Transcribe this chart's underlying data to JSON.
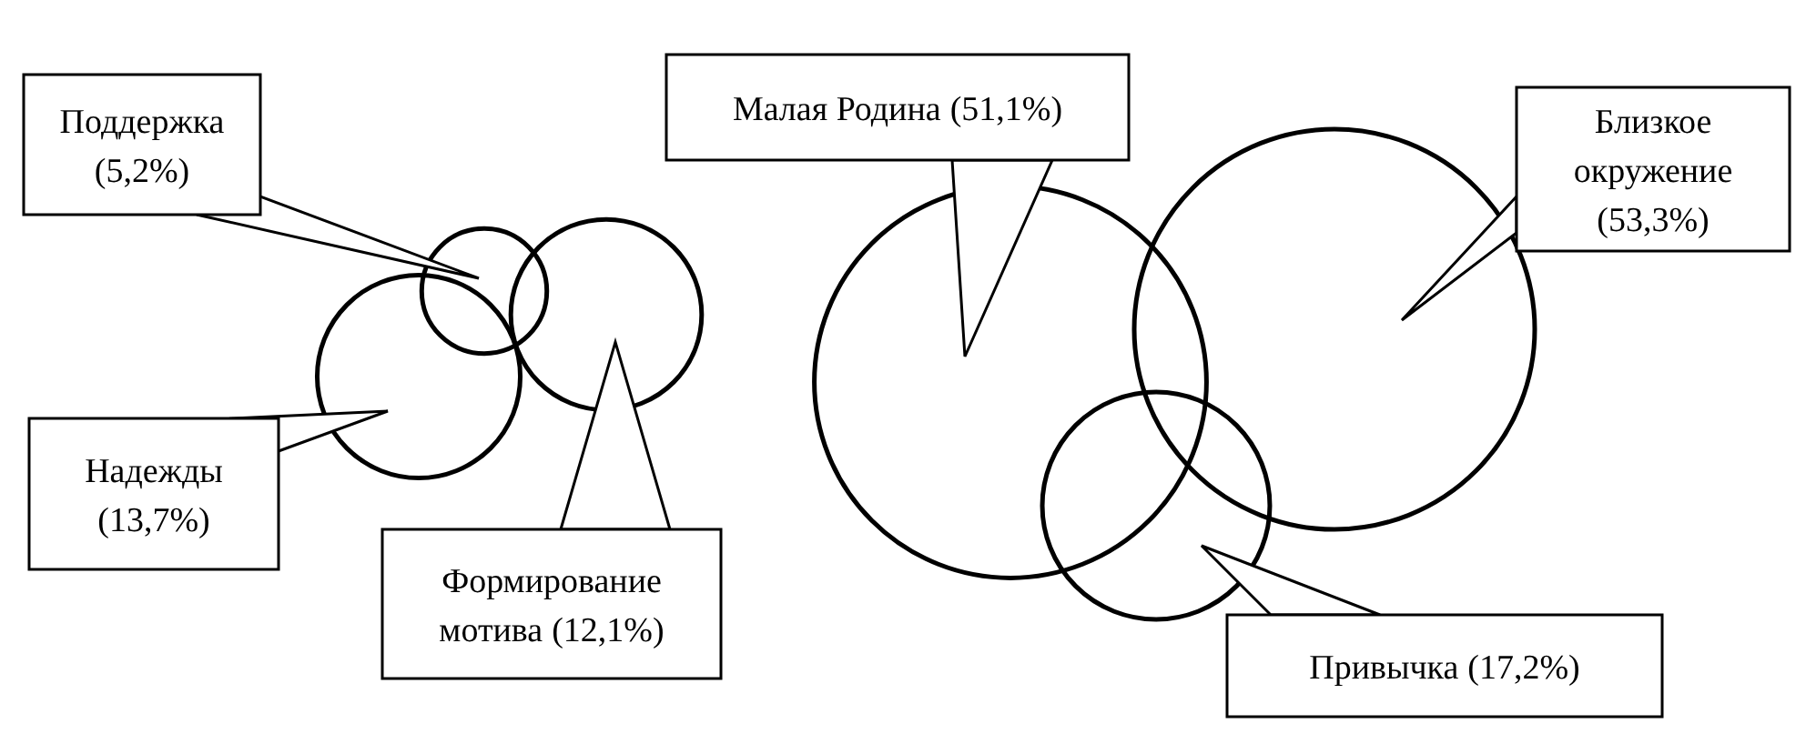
{
  "chart_data": {
    "type": "other",
    "categories": [
      "Поддержка",
      "Надежды",
      "Формирование мотива",
      "Малая Родина",
      "Близкое окружение",
      "Привычка"
    ],
    "values": [
      5.2,
      13.7,
      12.1,
      51.1,
      53.3,
      17.2
    ],
    "value_labels": [
      "(5,2%)",
      "(13,7%)",
      "(12,1%)",
      "(51,1%)",
      "(53,3%)",
      "(17,2%)"
    ],
    "color": "#000000"
  }
}
